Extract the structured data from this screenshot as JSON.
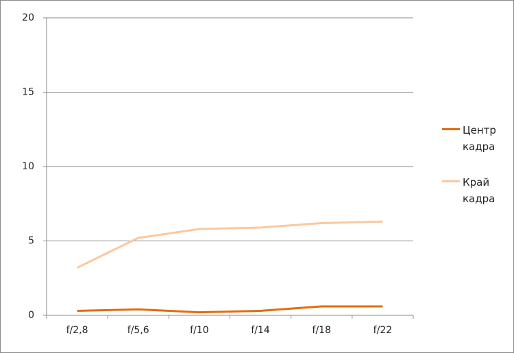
{
  "chart_data": {
    "type": "line",
    "categories": [
      "f/2,8",
      "f/5,6",
      "f/10",
      "f/14",
      "f/18",
      "f/22"
    ],
    "series": [
      {
        "name": "Центр кадра",
        "color": "#e36c09",
        "values": [
          0.3,
          0.4,
          0.2,
          0.3,
          0.6,
          0.6
        ]
      },
      {
        "name": "Край кадра",
        "color": "#fac8a0",
        "values": [
          3.2,
          5.2,
          5.8,
          5.9,
          6.2,
          6.3
        ]
      }
    ],
    "ylim": [
      0,
      20
    ],
    "yticks": [
      0,
      5,
      10,
      15,
      20
    ],
    "grid": true,
    "legend": "right"
  }
}
